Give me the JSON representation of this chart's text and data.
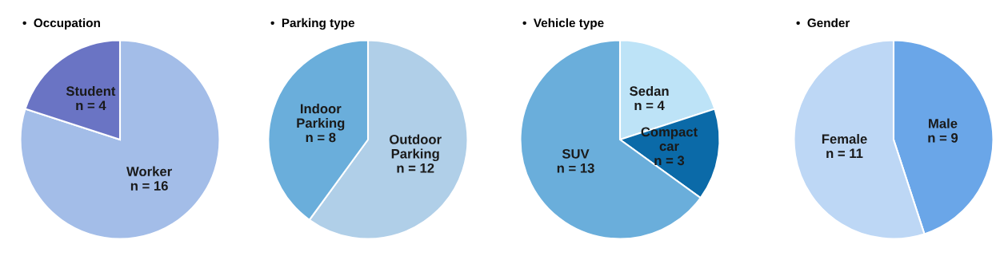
{
  "chart_data": [
    {
      "type": "pie",
      "title": "•  Occupation",
      "categories": [
        "Worker",
        "Student"
      ],
      "values": [
        16,
        4
      ],
      "colors": [
        "#a3bde8",
        "#6a74c4"
      ],
      "value_labels": [
        "n = 16",
        "n = 4"
      ]
    },
    {
      "type": "pie",
      "title": "•  Parking type",
      "categories": [
        "Outdoor\nParking",
        "Indoor\nParking"
      ],
      "values": [
        12,
        8
      ],
      "colors": [
        "#b0cfe8",
        "#6aaedb"
      ],
      "value_labels": [
        "n = 12",
        "n = 8"
      ]
    },
    {
      "type": "pie",
      "title": "•  Vehicle type",
      "categories": [
        "Sedan",
        "Compact\ncar",
        "SUV"
      ],
      "values": [
        4,
        3,
        13
      ],
      "colors": [
        "#bde3f7",
        "#0b6aa8",
        "#6aaedb"
      ],
      "value_labels": [
        "n = 4",
        "n = 3",
        "n = 13"
      ]
    },
    {
      "type": "pie",
      "title": "•  Gender",
      "categories": [
        "Male",
        "Female"
      ],
      "values": [
        9,
        11
      ],
      "colors": [
        "#6aa6e8",
        "#bdd7f5"
      ],
      "value_labels": [
        "n = 9",
        "n = 11"
      ]
    }
  ]
}
